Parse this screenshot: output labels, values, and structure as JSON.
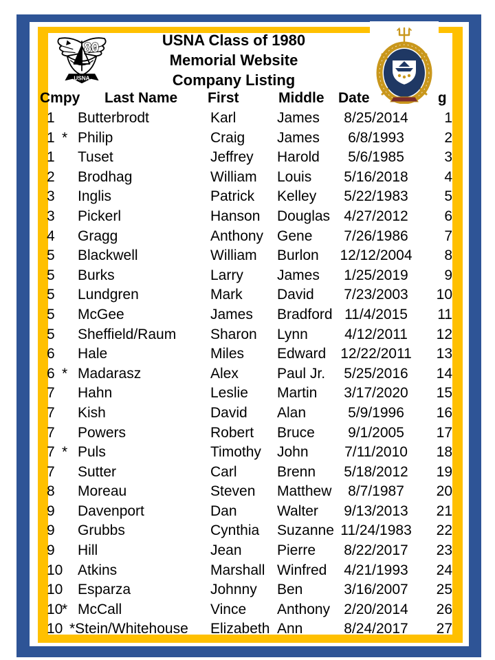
{
  "page": {
    "title_lines": [
      "USNA Class of 1980",
      "Memorial Website",
      "Company Listing"
    ]
  },
  "logos": {
    "left": "USNA Class of 1980 crest",
    "right": "United States Naval Academy seal"
  },
  "colors": {
    "frame_navy": "#2E5496",
    "frame_gold": "#FFC000",
    "text": "#000000",
    "seal_gold": "#C9971C",
    "seal_navy": "#1F3864",
    "seal_red": "#7C2D2D"
  },
  "table": {
    "columns": [
      "Cmpy",
      "Last Name",
      "First",
      "Middle",
      "Date of Passing"
    ],
    "rows": [
      {
        "cmpy": "1",
        "star": "",
        "last": "Butterbrodt",
        "first": "Karl",
        "middle": "James",
        "date": "8/25/2014",
        "num": "1"
      },
      {
        "cmpy": "1",
        "star": "*",
        "last": "Philip",
        "first": "Craig",
        "middle": "James",
        "date": "6/8/1993",
        "num": "2"
      },
      {
        "cmpy": "1",
        "star": "",
        "last": "Tuset",
        "first": "Jeffrey",
        "middle": "Harold",
        "date": "5/6/1985",
        "num": "3"
      },
      {
        "cmpy": "2",
        "star": "",
        "last": "Brodhag",
        "first": "William",
        "middle": "Louis",
        "date": "5/16/2018",
        "num": "4"
      },
      {
        "cmpy": "3",
        "star": "",
        "last": "Inglis",
        "first": "Patrick",
        "middle": "Kelley",
        "date": "5/22/1983",
        "num": "5"
      },
      {
        "cmpy": "3",
        "star": "",
        "last": "Pickerl",
        "first": "Hanson",
        "middle": "Douglas",
        "date": "4/27/2012",
        "num": "6"
      },
      {
        "cmpy": "4",
        "star": "",
        "last": "Gragg",
        "first": "Anthony",
        "middle": "Gene",
        "date": "7/26/1986",
        "num": "7"
      },
      {
        "cmpy": "5",
        "star": "",
        "last": "Blackwell",
        "first": "William",
        "middle": "Burlon",
        "date": "12/12/2004",
        "num": "8"
      },
      {
        "cmpy": "5",
        "star": "",
        "last": "Burks",
        "first": "Larry",
        "middle": "James",
        "date": "1/25/2019",
        "num": "9"
      },
      {
        "cmpy": "5",
        "star": "",
        "last": "Lundgren",
        "first": "Mark",
        "middle": "David",
        "date": "7/23/2003",
        "num": "10"
      },
      {
        "cmpy": "5",
        "star": "",
        "last": "McGee",
        "first": "James",
        "middle": "Bradford",
        "date": "11/4/2015",
        "num": "11"
      },
      {
        "cmpy": "5",
        "star": "",
        "last": "Sheffield/Raum",
        "first": "Sharon",
        "middle": "Lynn",
        "date": "4/12/2011",
        "num": "12"
      },
      {
        "cmpy": "6",
        "star": "",
        "last": "Hale",
        "first": "Miles",
        "middle": "Edward",
        "date": "12/22/2011",
        "num": "13"
      },
      {
        "cmpy": "6",
        "star": "*",
        "last": "Madarasz",
        "first": "Alex",
        "middle": "Paul Jr.",
        "date": "5/25/2016",
        "num": "14"
      },
      {
        "cmpy": "7",
        "star": "",
        "last": "Hahn",
        "first": "Leslie",
        "middle": "Martin",
        "date": "3/17/2020",
        "num": "15"
      },
      {
        "cmpy": "7",
        "star": "",
        "last": "Kish",
        "first": "David",
        "middle": "Alan",
        "date": "5/9/1996",
        "num": "16"
      },
      {
        "cmpy": "7",
        "star": "",
        "last": "Powers",
        "first": "Robert",
        "middle": "Bruce",
        "date": "9/1/2005",
        "num": "17"
      },
      {
        "cmpy": "7",
        "star": "*",
        "last": "Puls",
        "first": "Timothy",
        "middle": "John",
        "date": "7/11/2010",
        "num": "18"
      },
      {
        "cmpy": "7",
        "star": "",
        "last": "Sutter",
        "first": "Carl",
        "middle": "Brenn",
        "date": "5/18/2012",
        "num": "19"
      },
      {
        "cmpy": "8",
        "star": "",
        "last": "Moreau",
        "first": "Steven",
        "middle": "Matthew",
        "date": "8/7/1987",
        "num": "20"
      },
      {
        "cmpy": "9",
        "star": "",
        "last": "Davenport",
        "first": "Dan",
        "middle": "Walter",
        "date": "9/13/2013",
        "num": "21"
      },
      {
        "cmpy": "9",
        "star": "",
        "last": "Grubbs",
        "first": "Cynthia",
        "middle": "Suzanne",
        "date": "11/24/1983",
        "num": "22"
      },
      {
        "cmpy": "9",
        "star": "",
        "last": "Hill",
        "first": "Jean",
        "middle": "Pierre",
        "date": "8/22/2017",
        "num": "23"
      },
      {
        "cmpy": "10",
        "star": "",
        "last": "Atkins",
        "first": "Marshall",
        "middle": "Winfred",
        "date": "4/21/1993",
        "num": "24"
      },
      {
        "cmpy": "10",
        "star": "",
        "last": "Esparza",
        "first": "Johnny",
        "middle": "Ben",
        "date": "3/16/2007",
        "num": "25"
      },
      {
        "cmpy": "10",
        "star": "*",
        "last": "McCall",
        "first": "Vince",
        "middle": "Anthony",
        "date": "2/20/2014",
        "num": "26"
      },
      {
        "cmpy": "10",
        "star": "*",
        "star_attached": true,
        "last": "Stein/Whitehouse",
        "first": "Elizabeth",
        "middle": "Ann",
        "date": "8/24/2017",
        "num": "27"
      }
    ]
  }
}
